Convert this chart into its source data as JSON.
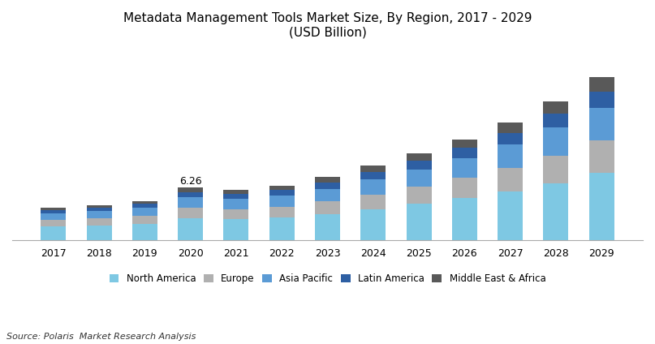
{
  "title_line1": "Metadata Management Tools Market Size, By Region, 2017 - 2029",
  "title_line2": "(USD Billion)",
  "years": [
    2017,
    2018,
    2019,
    2020,
    2021,
    2022,
    2023,
    2024,
    2025,
    2026,
    2027,
    2028,
    2029
  ],
  "regions": [
    "North America",
    "Europe",
    "Asia Pacific",
    "Latin America",
    "Middle East & Africa"
  ],
  "colors": [
    "#7ec8e3",
    "#b0b0b0",
    "#5b9bd5",
    "#2e5fa3",
    "#595959"
  ],
  "annotation_year": 2020,
  "annotation_text": "6.26",
  "source_text": "Source: Polaris  Market Research Analysis",
  "data": {
    "North America": [
      1.6,
      1.72,
      1.92,
      2.6,
      2.5,
      2.7,
      3.1,
      3.7,
      4.3,
      5.0,
      5.8,
      6.8,
      8.0
    ],
    "Europe": [
      0.8,
      0.86,
      0.96,
      1.25,
      1.2,
      1.3,
      1.5,
      1.75,
      2.05,
      2.4,
      2.8,
      3.3,
      3.9
    ],
    "Asia Pacific": [
      0.8,
      0.86,
      0.96,
      1.25,
      1.2,
      1.3,
      1.5,
      1.75,
      2.05,
      2.4,
      2.8,
      3.3,
      3.9
    ],
    "Latin America": [
      0.4,
      0.43,
      0.48,
      0.63,
      0.6,
      0.65,
      0.75,
      0.9,
      1.05,
      1.2,
      1.4,
      1.65,
      1.95
    ],
    "Middle East & Africa": [
      0.26,
      0.28,
      0.31,
      0.53,
      0.5,
      0.55,
      0.65,
      0.75,
      0.85,
      1.0,
      1.2,
      1.45,
      1.75
    ]
  },
  "ylim": [
    0,
    21
  ],
  "bar_width": 0.55,
  "background_color": "#ffffff",
  "legend_fontsize": 8.5,
  "title_fontsize": 11,
  "tick_fontsize": 9,
  "annotation_fontsize": 9
}
